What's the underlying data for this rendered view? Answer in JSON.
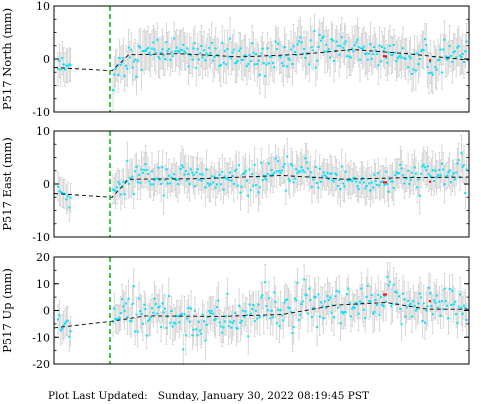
{
  "footer": {
    "label": "Plot Last Updated:",
    "value": "Sunday, January 30, 2022 08:19:45 PST"
  },
  "colors": {
    "points": "#00e5ff",
    "error_bars": "#c8c8c8",
    "trend": "#000000",
    "offset_line": "#00bb00",
    "outliers": "#ff0000"
  },
  "chart_data": [
    {
      "type": "scatter",
      "station": "P517",
      "ylabel": "P517 North (mm)",
      "ylim": [
        -10,
        10
      ],
      "yticks": [
        "10",
        "0",
        "-10"
      ],
      "grid": false,
      "gap_segment": {
        "points": "sparse cluster with ~±3 mm error bars before data gap",
        "value_mean": -1.5
      },
      "offset_marker": "green dashed vertical line at equipment change",
      "trend_points": [
        {
          "t": 0.0,
          "y": -1.6
        },
        {
          "t": 0.14,
          "y": -2.2
        },
        {
          "t": 0.18,
          "y": 0.8
        },
        {
          "t": 0.3,
          "y": 1.0
        },
        {
          "t": 0.45,
          "y": 0.4
        },
        {
          "t": 0.6,
          "y": 0.9
        },
        {
          "t": 0.72,
          "y": 1.8
        },
        {
          "t": 0.85,
          "y": 1.0
        },
        {
          "t": 1.0,
          "y": -0.2
        }
      ],
      "scatter_sd": 1.5,
      "error_bar": 3.5
    },
    {
      "type": "scatter",
      "station": "P517",
      "ylabel": "P517 East (mm)",
      "ylim": [
        -10,
        10
      ],
      "yticks": [
        "10",
        "0",
        "-10"
      ],
      "grid": false,
      "gap_segment": {
        "points": "sparse cluster with ~±3 mm error bars before data gap",
        "value_mean": -2.0
      },
      "offset_marker": "green dashed vertical line at equipment change",
      "trend_points": [
        {
          "t": 0.0,
          "y": -1.8
        },
        {
          "t": 0.14,
          "y": -2.5
        },
        {
          "t": 0.18,
          "y": 0.9
        },
        {
          "t": 0.35,
          "y": 1.0
        },
        {
          "t": 0.55,
          "y": 1.6
        },
        {
          "t": 0.7,
          "y": 0.9
        },
        {
          "t": 0.85,
          "y": 1.2
        },
        {
          "t": 1.0,
          "y": 1.3
        }
      ],
      "scatter_sd": 1.3,
      "error_bar": 3.0
    },
    {
      "type": "scatter",
      "station": "P517",
      "ylabel": "P517 Up (mm)",
      "ylim": [
        -20,
        20
      ],
      "yticks": [
        "20",
        "10",
        "0",
        "-10",
        "-20"
      ],
      "grid": false,
      "gap_segment": {
        "points": "sparse cluster with ~±6 mm error bars before data gap",
        "value_mean": -4.5
      },
      "offset_marker": "green dashed vertical line at equipment change",
      "trend_points": [
        {
          "t": 0.0,
          "y": -6.5
        },
        {
          "t": 0.14,
          "y": -4.0
        },
        {
          "t": 0.22,
          "y": -2.0
        },
        {
          "t": 0.4,
          "y": -2.2
        },
        {
          "t": 0.55,
          "y": -1.5
        },
        {
          "t": 0.68,
          "y": 2.0
        },
        {
          "t": 0.8,
          "y": 3.0
        },
        {
          "t": 0.9,
          "y": 0.5
        },
        {
          "t": 1.0,
          "y": 0.5
        }
      ],
      "scatter_sd": 4.0,
      "error_bar": 6.0
    }
  ]
}
